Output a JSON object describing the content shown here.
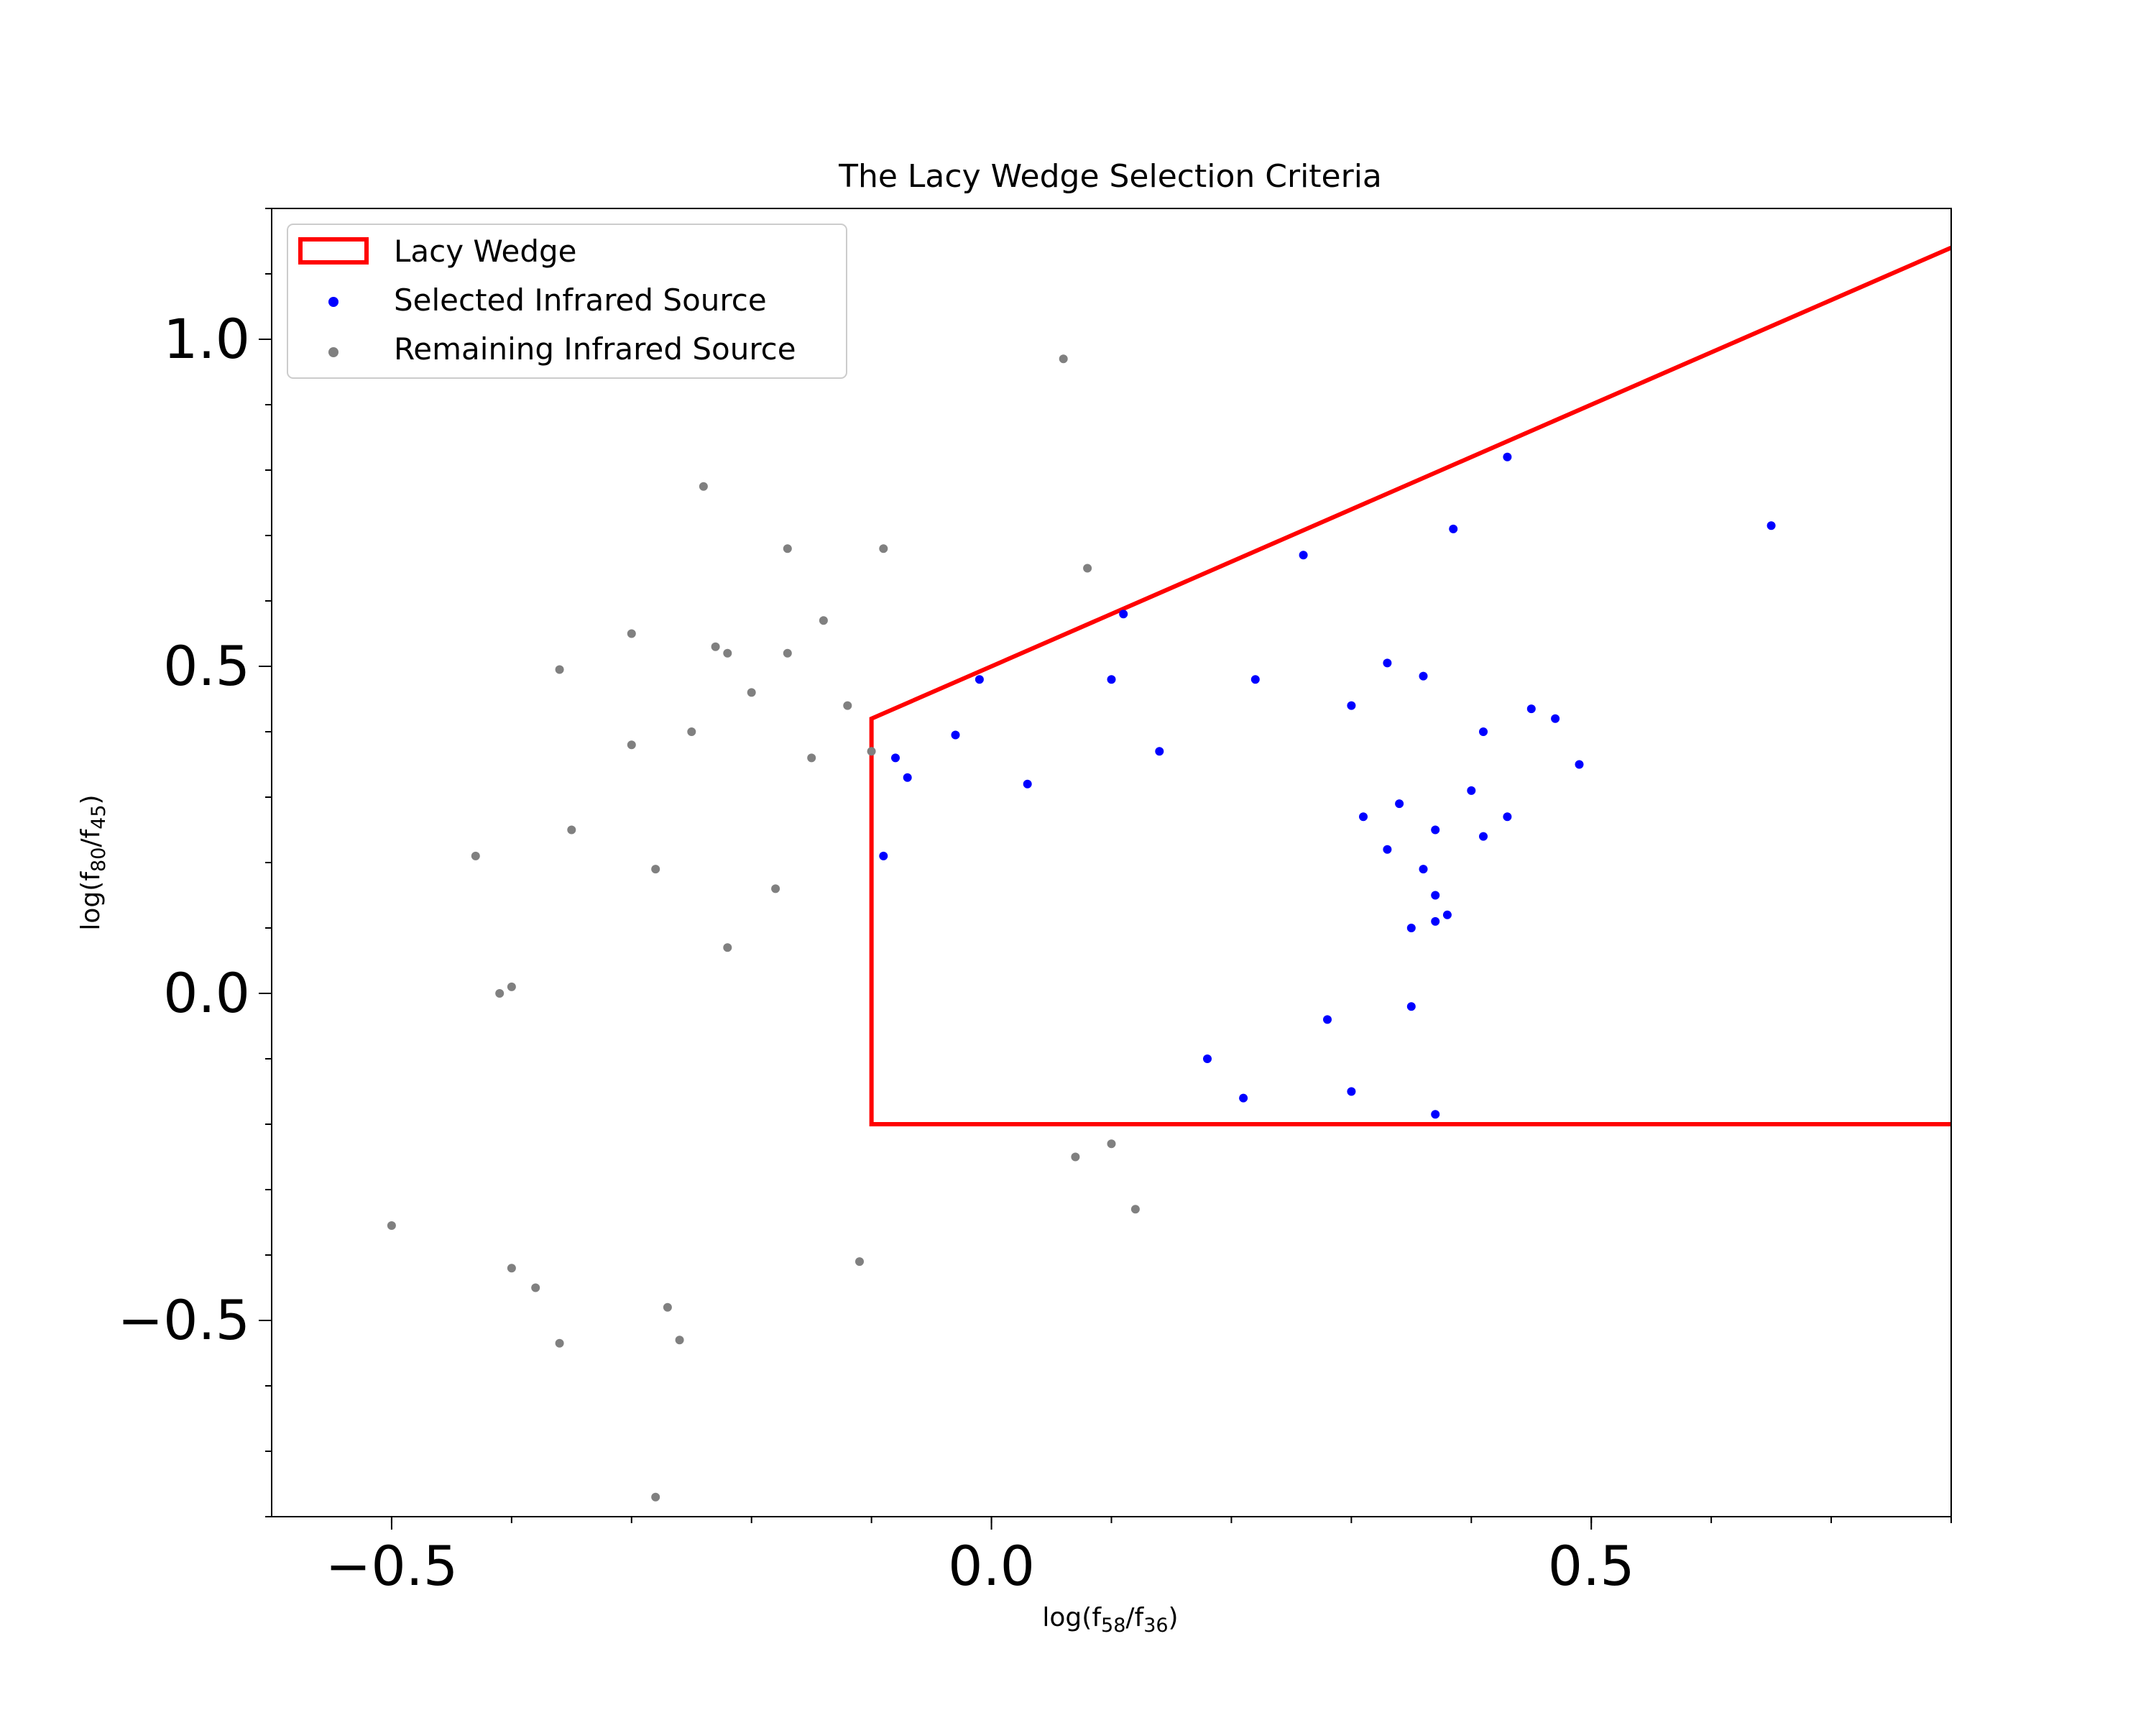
{
  "chart_data": {
    "type": "scatter",
    "title": "The Lacy Wedge Selection Criteria",
    "xlabel": {
      "base": "log(f",
      "sub1": "58",
      "mid": "/f",
      "sub2": "36",
      "end": ")"
    },
    "ylabel": {
      "base": "log(f",
      "sub1": "80",
      "mid": "/f",
      "sub2": "45",
      "end": ")"
    },
    "xlim": [
      -0.6,
      0.8
    ],
    "ylim": [
      -0.8,
      1.2
    ],
    "xticks": [
      {
        "value": -0.5,
        "label": "−0.5"
      },
      {
        "value": 0.0,
        "label": "0.0"
      },
      {
        "value": 0.5,
        "label": "0.5"
      }
    ],
    "yticks": [
      {
        "value": -0.5,
        "label": "−0.5"
      },
      {
        "value": 0.0,
        "label": "0.0"
      },
      {
        "value": 0.5,
        "label": "0.5"
      },
      {
        "value": 1.0,
        "label": "1.0"
      }
    ],
    "x_minor_step": 0.1,
    "y_minor_step": 0.1,
    "grid": false,
    "legend_position": "upper-left",
    "wedge": {
      "name": "Lacy Wedge",
      "color": "#ff0000",
      "x_min": -0.1,
      "y_min": -0.2,
      "upper_line": {
        "slope": 0.8,
        "intercept": 0.5
      }
    },
    "series": [
      {
        "name": "Selected Infrared Source",
        "color": "#0000ff",
        "points": [
          [
            0.43,
            0.82
          ],
          [
            0.65,
            0.715
          ],
          [
            0.385,
            0.71
          ],
          [
            0.26,
            0.67
          ],
          [
            0.11,
            0.58
          ],
          [
            -0.01,
            0.48
          ],
          [
            0.1,
            0.48
          ],
          [
            0.22,
            0.48
          ],
          [
            0.33,
            0.505
          ],
          [
            0.36,
            0.485
          ],
          [
            -0.03,
            0.395
          ],
          [
            0.3,
            0.44
          ],
          [
            0.45,
            0.435
          ],
          [
            0.47,
            0.42
          ],
          [
            0.41,
            0.4
          ],
          [
            0.49,
            0.35
          ],
          [
            -0.08,
            0.36
          ],
          [
            0.03,
            0.32
          ],
          [
            0.14,
            0.37
          ],
          [
            0.43,
            0.27
          ],
          [
            -0.07,
            0.33
          ],
          [
            0.4,
            0.31
          ],
          [
            0.41,
            0.24
          ],
          [
            0.37,
            0.25
          ],
          [
            -0.09,
            0.21
          ],
          [
            0.37,
            0.15
          ],
          [
            0.35,
            0.1
          ],
          [
            0.37,
            0.11
          ],
          [
            0.35,
            -0.02
          ],
          [
            0.37,
            -0.185
          ],
          [
            0.3,
            -0.15
          ],
          [
            0.21,
            -0.16
          ],
          [
            0.28,
            -0.04
          ],
          [
            0.18,
            -0.1
          ],
          [
            0.34,
            0.29
          ],
          [
            0.31,
            0.27
          ],
          [
            0.33,
            0.22
          ],
          [
            0.36,
            0.19
          ],
          [
            0.38,
            0.12
          ]
        ]
      },
      {
        "name": "Remaining Infrared Source",
        "color": "#808080",
        "points": [
          [
            0.06,
            0.97
          ],
          [
            -0.24,
            0.775
          ],
          [
            -0.09,
            0.68
          ],
          [
            -0.17,
            0.68
          ],
          [
            0.08,
            0.65
          ],
          [
            -0.14,
            0.57
          ],
          [
            -0.3,
            0.55
          ],
          [
            -0.36,
            0.495
          ],
          [
            -0.23,
            0.53
          ],
          [
            -0.22,
            0.52
          ],
          [
            -0.17,
            0.52
          ],
          [
            -0.12,
            0.44
          ],
          [
            -0.43,
            0.21
          ],
          [
            -0.5,
            -0.355
          ],
          [
            -0.28,
            -0.77
          ],
          [
            -0.36,
            -0.535
          ],
          [
            -0.26,
            -0.53
          ],
          [
            -0.41,
            0.0
          ],
          [
            -0.4,
            0.01
          ],
          [
            -0.3,
            0.38
          ],
          [
            -0.25,
            0.4
          ],
          [
            -0.2,
            0.46
          ],
          [
            -0.15,
            0.36
          ],
          [
            -0.1,
            0.37
          ],
          [
            -0.35,
            0.25
          ],
          [
            -0.28,
            0.19
          ],
          [
            -0.18,
            0.16
          ],
          [
            -0.22,
            0.07
          ],
          [
            0.12,
            -0.33
          ],
          [
            0.1,
            -0.23
          ],
          [
            0.07,
            -0.25
          ],
          [
            -0.38,
            -0.45
          ],
          [
            -0.4,
            -0.42
          ],
          [
            -0.27,
            -0.48
          ],
          [
            -0.11,
            -0.41
          ]
        ]
      }
    ]
  }
}
